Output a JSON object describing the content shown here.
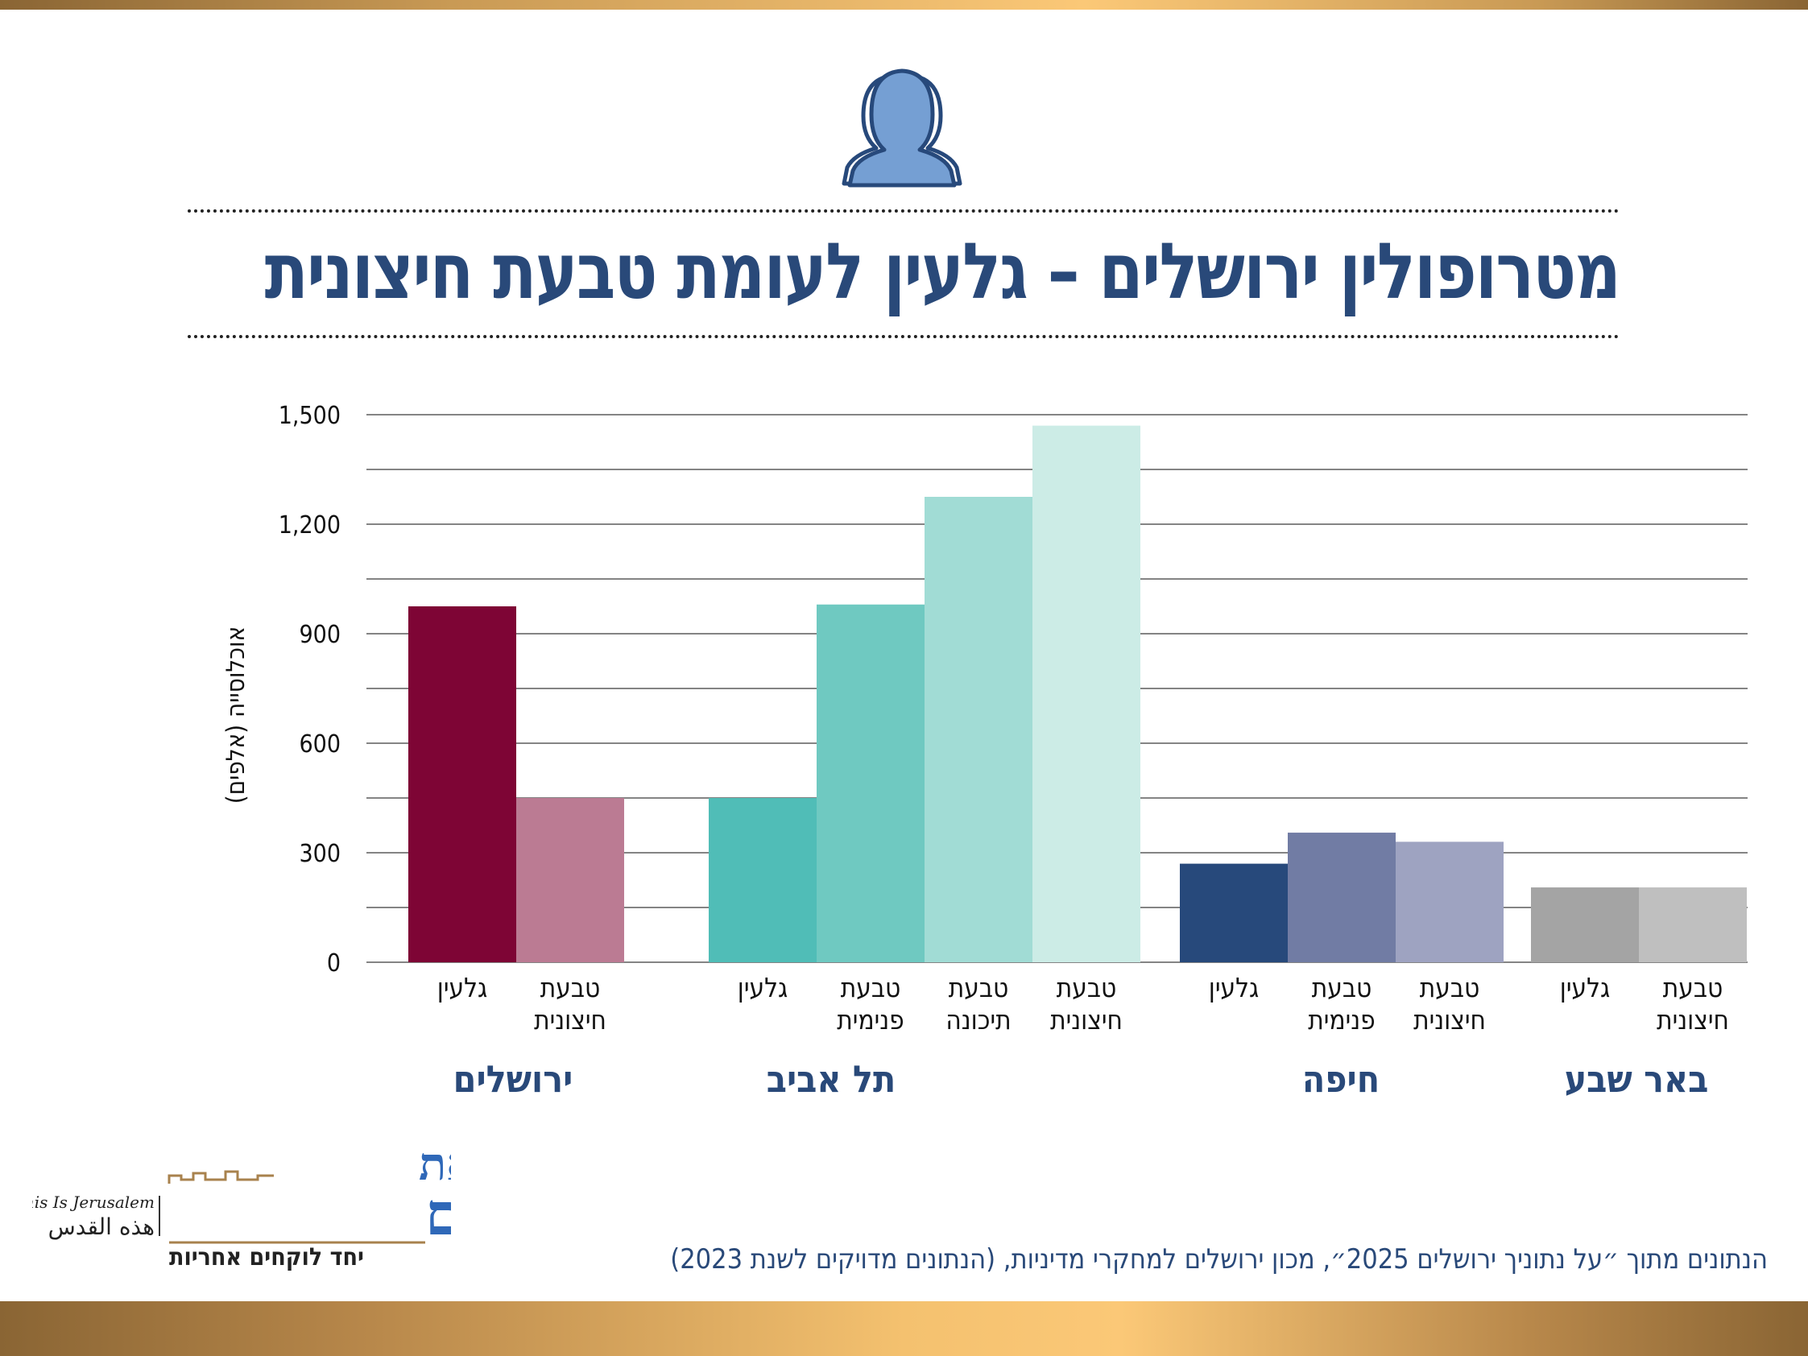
{
  "title": "מטרופולין ירושלים – גלעין לעומת טבעת חיצונית",
  "source_note": "הנתונים מתוך ״על נתוניך ירושלים 2025״, מכון ירושלים למחקרי מדיניות, (הנתונים מדויקים לשנת 2023)",
  "logo": {
    "hebrew_line1": "זאת",
    "hebrew_line2": "ירושלים",
    "english": "This Is Jerusalem",
    "arabic": "هذه القدس",
    "tagline": "יחד לוקחים אחריות"
  },
  "icons": [
    "people-icon"
  ],
  "chart_data": {
    "type": "bar",
    "ylabel": "אוכלוסייה (אלפים)",
    "ylim": [
      0,
      1500
    ],
    "yticks": [
      0,
      300,
      600,
      900,
      1200,
      1500
    ],
    "ytick_labels": [
      "0",
      "300",
      "600",
      "900",
      "1,200",
      "1,500"
    ],
    "grid": true,
    "groups": [
      {
        "name": "ירושלים",
        "bars": [
          {
            "label": [
              "גלעין"
            ],
            "value": 975,
            "color": "#7e0535"
          },
          {
            "label": [
              "טבעת",
              "חיצונית"
            ],
            "value": 450,
            "color": "#bb7b93"
          }
        ]
      },
      {
        "name": "תל אביב",
        "bars": [
          {
            "label": [
              "גלעין"
            ],
            "value": 450,
            "color": "#50bdb7"
          },
          {
            "label": [
              "טבעת",
              "פנימית"
            ],
            "value": 980,
            "color": "#6fc9c1"
          },
          {
            "label": [
              "טבעת",
              "תיכונה"
            ],
            "value": 1275,
            "color": "#a1dcd5"
          },
          {
            "label": [
              "טבעת",
              "חיצונית"
            ],
            "value": 1470,
            "color": "#ccece6"
          }
        ]
      },
      {
        "name": "חיפה",
        "bars": [
          {
            "label": [
              "גלעין"
            ],
            "value": 270,
            "color": "#27497b"
          },
          {
            "label": [
              "טבעת",
              "פנימית"
            ],
            "value": 355,
            "color": "#717ca4"
          },
          {
            "label": [
              "טבעת",
              "חיצונית"
            ],
            "value": 330,
            "color": "#9ea3c1"
          }
        ]
      },
      {
        "name": "באר שבע",
        "bars": [
          {
            "label": [
              "גלעין"
            ],
            "value": 205,
            "color": "#a4a4a4"
          },
          {
            "label": [
              "טבעת",
              "חיצונית"
            ],
            "value": 205,
            "color": "#bfbfbf"
          }
        ]
      }
    ]
  }
}
